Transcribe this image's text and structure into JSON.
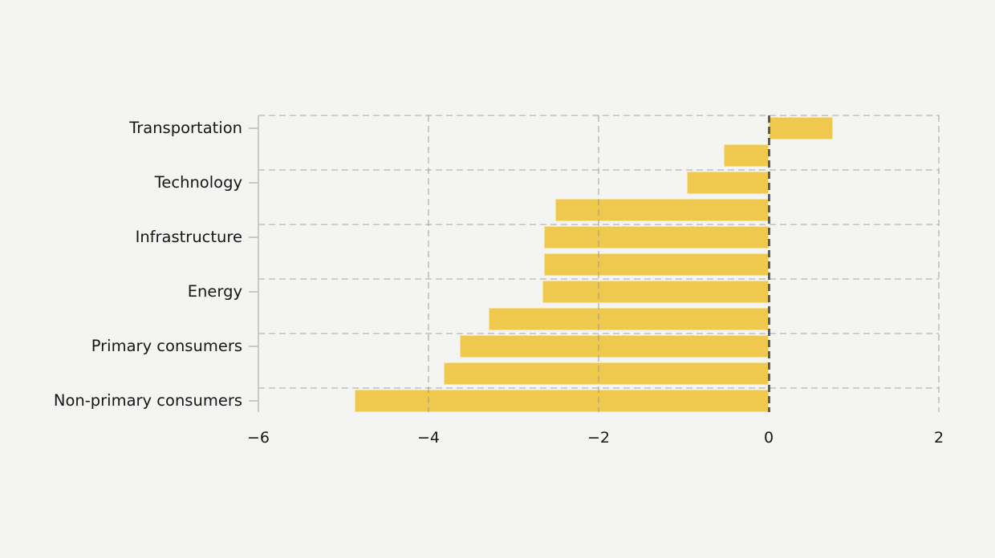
{
  "chart_data": {
    "type": "bar",
    "orientation": "horizontal",
    "title": "",
    "xlabel": "",
    "ylabel": "",
    "xlim": [
      -6,
      2
    ],
    "grid": true,
    "legend": null,
    "categories": [
      "Transportation",
      "Technology",
      "Infrastructure",
      "Energy",
      "Primary consumers",
      "Non-primary consumers"
    ],
    "bars": [
      {
        "label": "Transportation",
        "value": 0.75
      },
      {
        "label": "",
        "value": -0.53
      },
      {
        "label": "Technology",
        "value": -0.96
      },
      {
        "label": "",
        "value": -2.51
      },
      {
        "label": "Infrastructure",
        "value": -2.64
      },
      {
        "label": "",
        "value": -2.64
      },
      {
        "label": "Energy",
        "value": -2.66
      },
      {
        "label": "",
        "value": -3.29
      },
      {
        "label": "Primary consumers",
        "value": -3.63
      },
      {
        "label": "",
        "value": -3.82
      },
      {
        "label": "Non-primary consumers",
        "value": -4.87
      }
    ],
    "xticks": [
      {
        "value": -6,
        "label": "−6"
      },
      {
        "value": -4,
        "label": "−4"
      },
      {
        "value": -2,
        "label": "−2"
      },
      {
        "value": 0,
        "label": "0"
      },
      {
        "value": 2,
        "label": "2"
      }
    ],
    "colors": {
      "bar": "#efc94e",
      "background": "#f4f4f2",
      "grid": "#cdcdcb",
      "zero_line": "#3c3c3c",
      "spine": "#c9c9c9",
      "text": "#161616"
    }
  }
}
